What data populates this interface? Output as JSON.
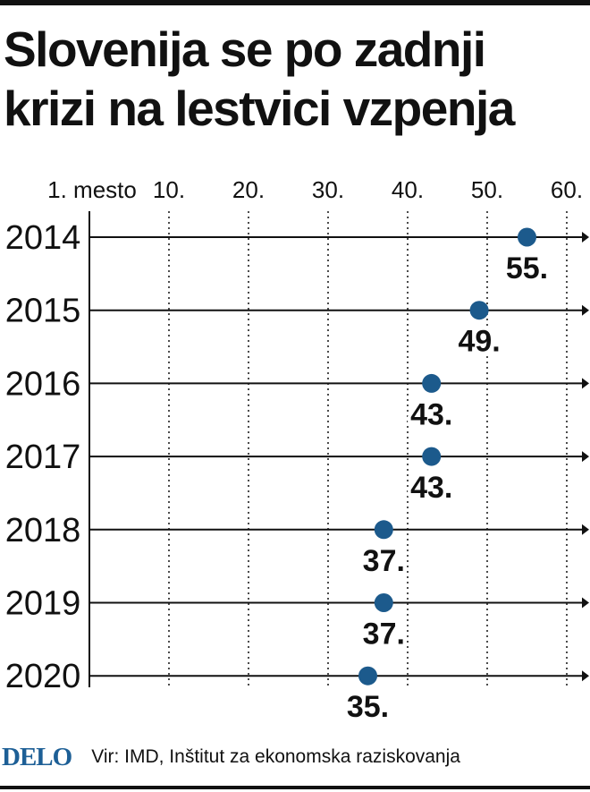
{
  "title": "Slovenija se po zadnji krizi na lestvici vzpenja",
  "footer": {
    "logo": "DELO",
    "source": "Vir: IMD, Inštitut za ekonomska raziskovanja"
  },
  "colors": {
    "marker": "#1c5a8c",
    "text": "#111111",
    "logo": "#1d5f96"
  },
  "chart_data": {
    "type": "scatter",
    "title": "Slovenija se po zadnji krizi na lestvici vzpenja",
    "x_tick_values": [
      1,
      10,
      20,
      30,
      40,
      50,
      60
    ],
    "x_tick_labels": [
      "1. mesto",
      "10.",
      "20.",
      "30.",
      "40.",
      "50.",
      "60."
    ],
    "xlim": [
      1,
      60
    ],
    "categories": [
      "2014",
      "2015",
      "2016",
      "2017",
      "2018",
      "2019",
      "2020"
    ],
    "values": [
      55,
      49,
      43,
      43,
      37,
      37,
      35
    ],
    "value_labels": [
      "55.",
      "49.",
      "43.",
      "43.",
      "37.",
      "37.",
      "35."
    ],
    "grid": true
  }
}
